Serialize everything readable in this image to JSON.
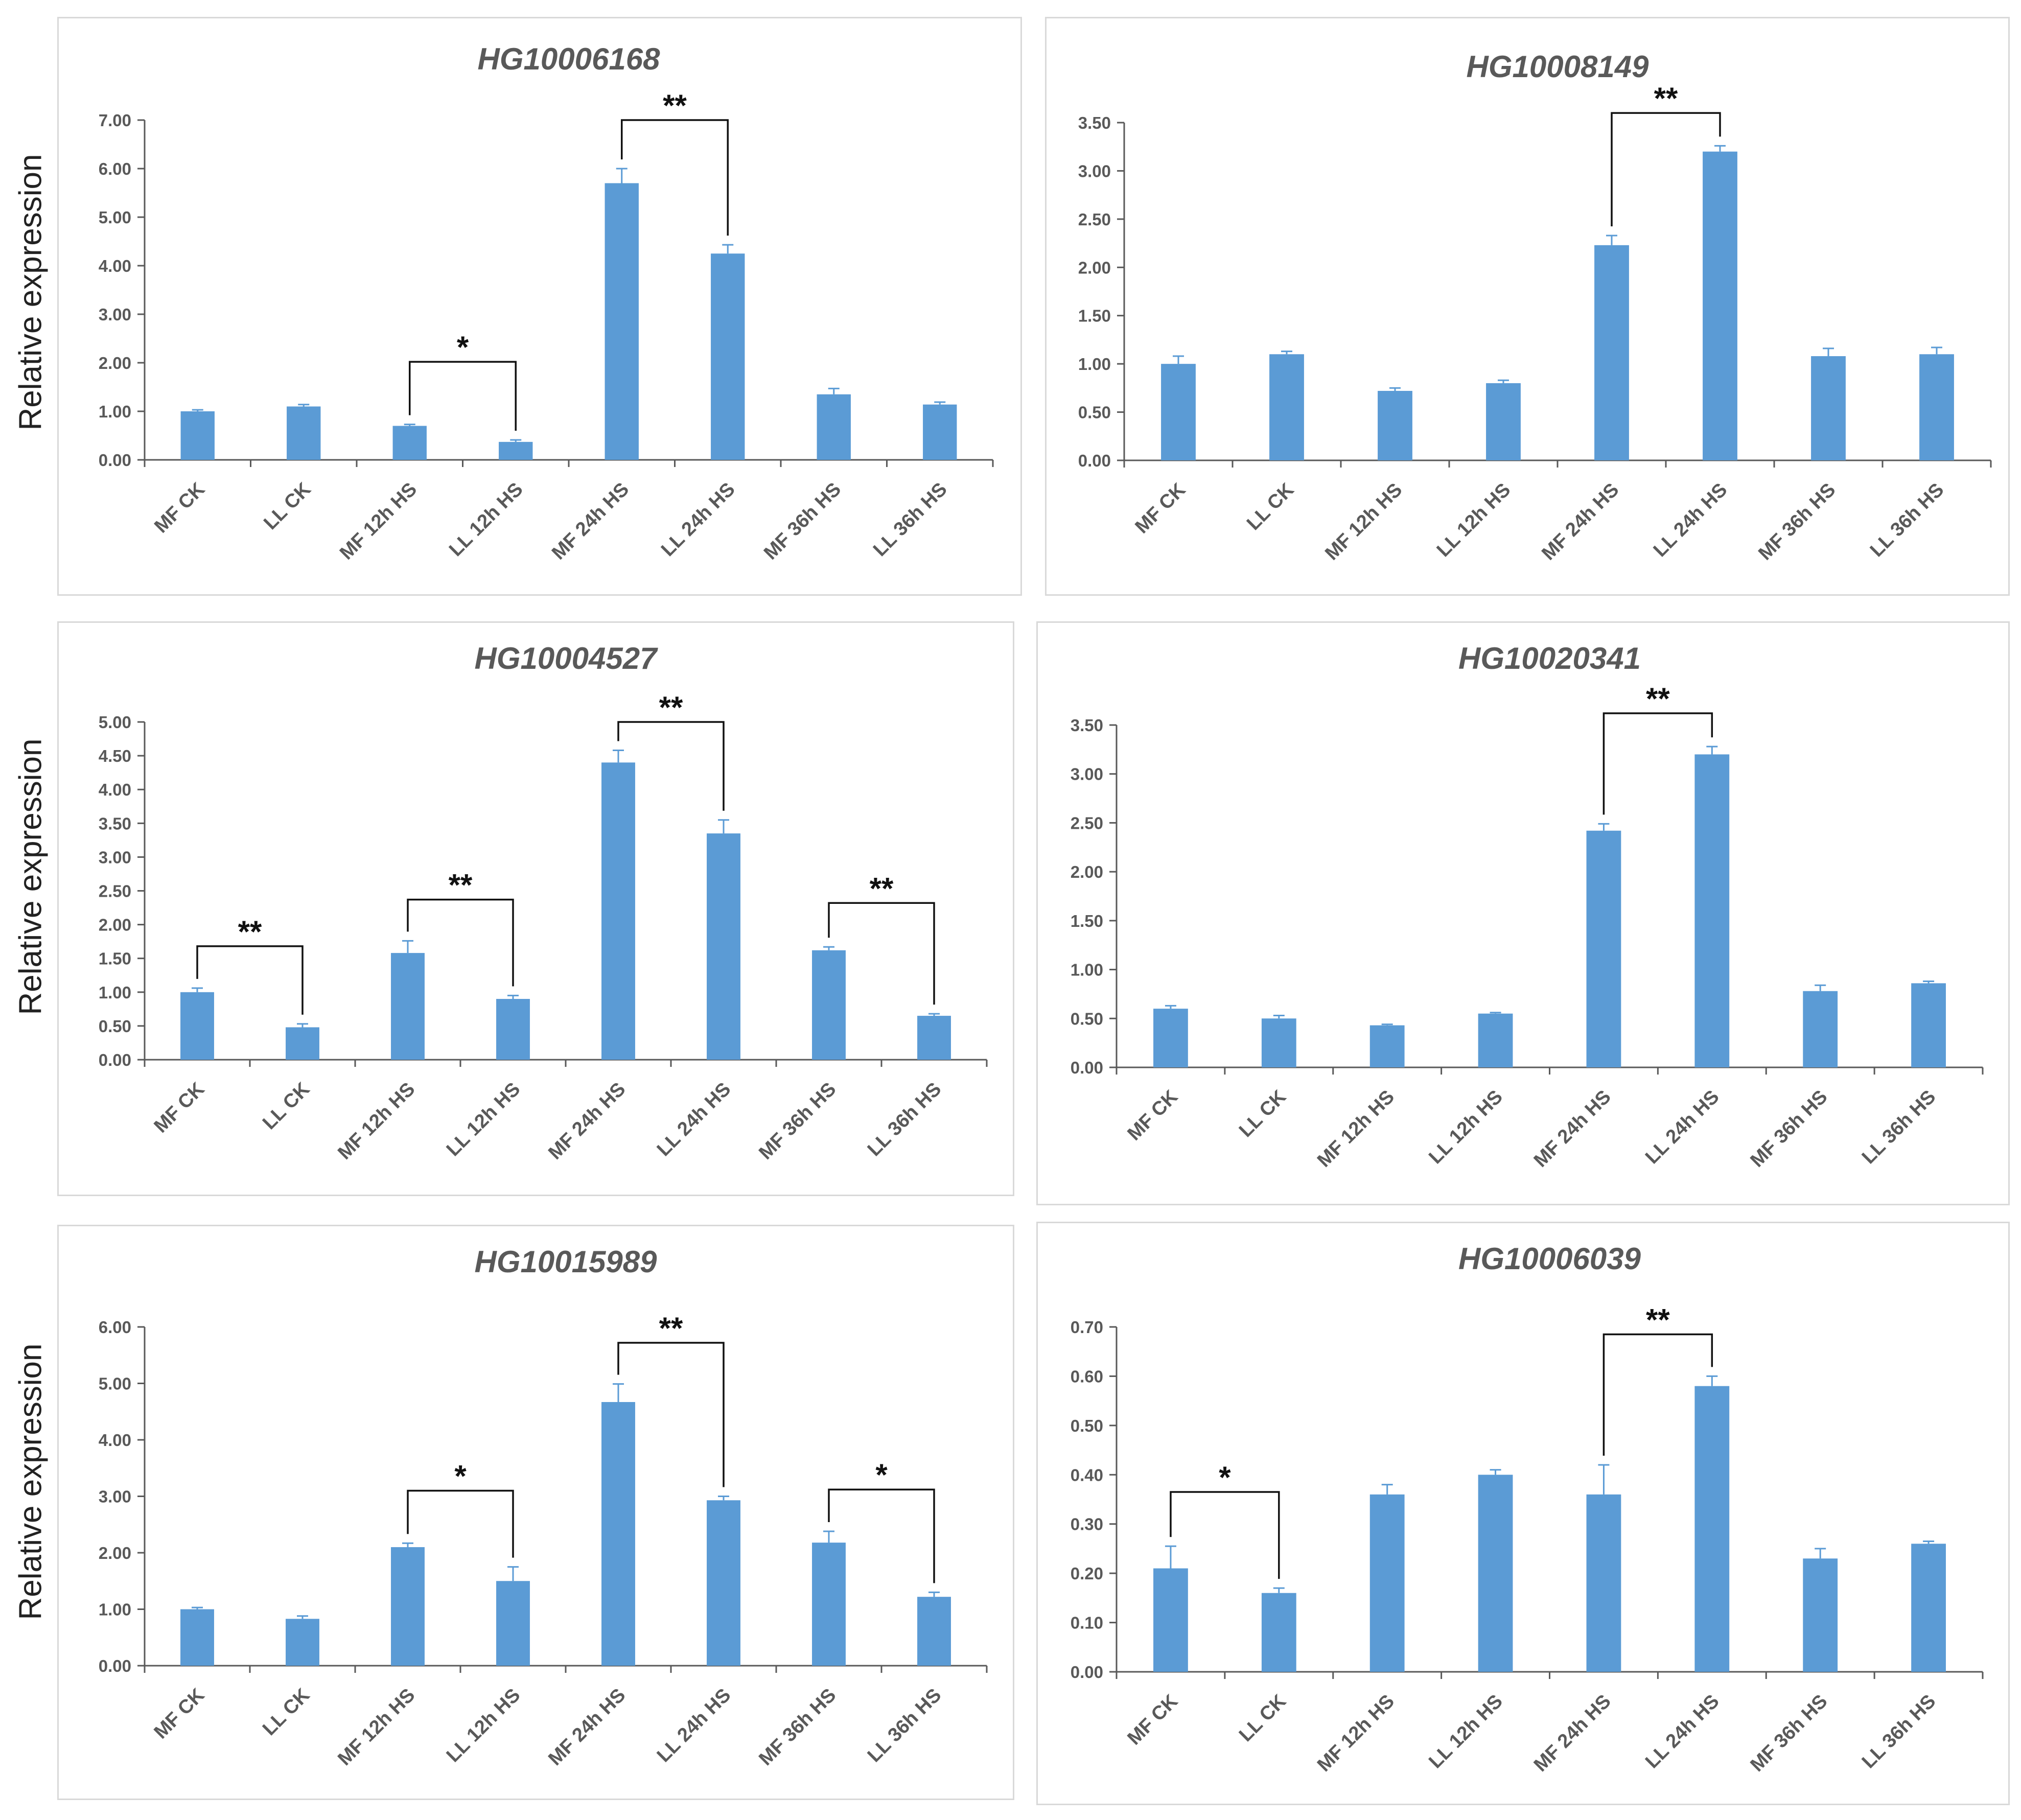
{
  "y_axis_label": "Relative expression",
  "colors": {
    "bar": "#5b9bd5",
    "axis": "#595959",
    "bracket": "#111111",
    "error": "#5b9bd5"
  },
  "chart_data": [
    {
      "type": "bar",
      "title": "HG10006168",
      "categories": [
        "MF CK",
        "LL CK",
        "MF 12h HS",
        "LL 12h HS",
        "MF 24h HS",
        "LL 24h HS",
        "MF 36h HS",
        "LL 36h HS"
      ],
      "values": [
        1.0,
        1.1,
        0.7,
        0.37,
        5.7,
        4.25,
        1.35,
        1.14
      ],
      "errors": [
        0.03,
        0.04,
        0.03,
        0.04,
        0.3,
        0.18,
        0.12,
        0.05
      ],
      "ylim": [
        0,
        7
      ],
      "yticks": [
        "0.00",
        "1.00",
        "2.00",
        "3.00",
        "4.00",
        "5.00",
        "6.00",
        "7.00"
      ],
      "significance": [
        {
          "from": 2,
          "to": 3,
          "label": "*",
          "y": 2.02
        },
        {
          "from": 4,
          "to": 5,
          "label": "**",
          "y": 7.0
        }
      ]
    },
    {
      "type": "bar",
      "title": "HG10008149",
      "categories": [
        "MF CK",
        "LL CK",
        "MF 12h HS",
        "LL 12h HS",
        "MF 24h HS",
        "LL 24h HS",
        "MF 36h HS",
        "LL 36h HS"
      ],
      "values": [
        1.0,
        1.1,
        0.72,
        0.8,
        2.23,
        3.2,
        1.08,
        1.1
      ],
      "errors": [
        0.08,
        0.03,
        0.03,
        0.03,
        0.1,
        0.06,
        0.08,
        0.07
      ],
      "ylim": [
        0,
        3.5
      ],
      "yticks": [
        "0.00",
        "0.50",
        "1.00",
        "1.50",
        "2.00",
        "2.50",
        "3.00",
        "3.50"
      ],
      "significance": [
        {
          "from": 4,
          "to": 5,
          "label": "**",
          "y": 3.6
        }
      ]
    },
    {
      "type": "bar",
      "title": "HG10004527",
      "categories": [
        "MF CK",
        "LL CK",
        "MF 12h HS",
        "LL 12h HS",
        "MF 24h HS",
        "LL 24h HS",
        "MF 36h HS",
        "LL 36h HS"
      ],
      "values": [
        1.0,
        0.48,
        1.58,
        0.9,
        4.4,
        3.35,
        1.62,
        0.65
      ],
      "errors": [
        0.06,
        0.05,
        0.18,
        0.05,
        0.18,
        0.2,
        0.05,
        0.03
      ],
      "ylim": [
        0,
        5
      ],
      "yticks": [
        "0.00",
        "0.50",
        "1.00",
        "1.50",
        "2.00",
        "2.50",
        "3.00",
        "3.50",
        "4.00",
        "4.50",
        "5.00"
      ],
      "significance": [
        {
          "from": 0,
          "to": 1,
          "label": "**",
          "y": 1.68
        },
        {
          "from": 2,
          "to": 3,
          "label": "**",
          "y": 2.37
        },
        {
          "from": 4,
          "to": 5,
          "label": "**",
          "y": 5.0
        },
        {
          "from": 6,
          "to": 7,
          "label": "**",
          "y": 2.32
        }
      ]
    },
    {
      "type": "bar",
      "title": "HG10020341",
      "categories": [
        "MF CK",
        "LL CK",
        "MF 12h HS",
        "LL 12h HS",
        "MF 24h HS",
        "LL 24h HS",
        "MF 36h HS",
        "LL 36h HS"
      ],
      "values": [
        0.6,
        0.5,
        0.43,
        0.55,
        2.42,
        3.2,
        0.78,
        0.86
      ],
      "errors": [
        0.03,
        0.03,
        0.01,
        0.01,
        0.07,
        0.08,
        0.06,
        0.02
      ],
      "ylim": [
        0,
        3.5
      ],
      "yticks": [
        "0.00",
        "0.50",
        "1.00",
        "1.50",
        "2.00",
        "2.50",
        "3.00",
        "3.50"
      ],
      "significance": [
        {
          "from": 4,
          "to": 5,
          "label": "**",
          "y": 3.62
        }
      ]
    },
    {
      "type": "bar",
      "title": "HG10015989",
      "categories": [
        "MF CK",
        "LL CK",
        "MF 12h HS",
        "LL 12h HS",
        "MF 24h HS",
        "LL 24h HS",
        "MF 36h HS",
        "LL 36h HS"
      ],
      "values": [
        1.0,
        0.83,
        2.1,
        1.5,
        4.67,
        2.93,
        2.18,
        1.22
      ],
      "errors": [
        0.03,
        0.05,
        0.07,
        0.25,
        0.32,
        0.07,
        0.2,
        0.08
      ],
      "ylim": [
        0,
        6
      ],
      "yticks": [
        "0.00",
        "1.00",
        "2.00",
        "3.00",
        "4.00",
        "5.00",
        "6.00"
      ],
      "significance": [
        {
          "from": 2,
          "to": 3,
          "label": "*",
          "y": 3.1
        },
        {
          "from": 4,
          "to": 5,
          "label": "**",
          "y": 5.72
        },
        {
          "from": 6,
          "to": 7,
          "label": "*",
          "y": 3.12
        }
      ]
    },
    {
      "type": "bar",
      "title": "HG10006039",
      "categories": [
        "MF CK",
        "LL CK",
        "MF 12h HS",
        "LL 12h HS",
        "MF 24h HS",
        "LL 24h HS",
        "MF 36h HS",
        "LL 36h HS"
      ],
      "values": [
        0.21,
        0.16,
        0.36,
        0.4,
        0.36,
        0.58,
        0.23,
        0.26
      ],
      "errors": [
        0.045,
        0.01,
        0.02,
        0.01,
        0.06,
        0.02,
        0.02,
        0.005
      ],
      "ylim": [
        0,
        0.7
      ],
      "yticks": [
        "0.00",
        "0.10",
        "0.20",
        "0.30",
        "0.40",
        "0.50",
        "0.60",
        "0.70"
      ],
      "significance": [
        {
          "from": 0,
          "to": 1,
          "label": "*",
          "y": 0.365
        },
        {
          "from": 4,
          "to": 5,
          "label": "**",
          "y": 0.685
        }
      ]
    }
  ]
}
